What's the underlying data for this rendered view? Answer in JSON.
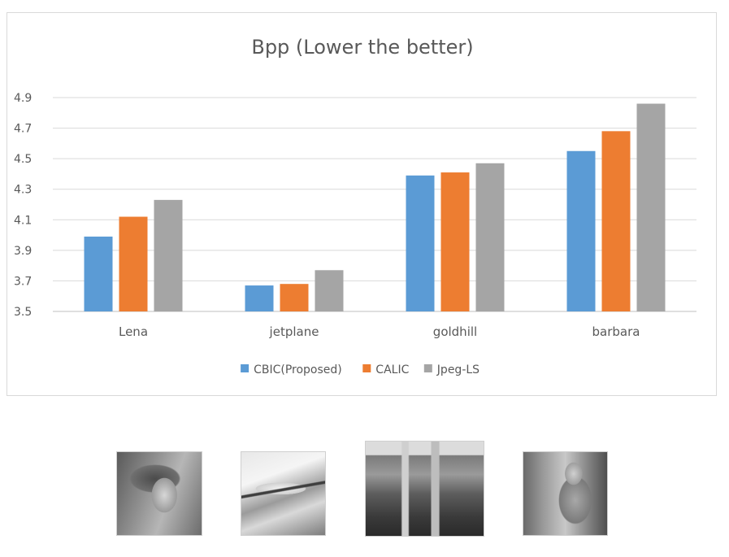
{
  "chart_data": {
    "type": "bar",
    "title": "Bpp (Lower the better)",
    "xlabel": "",
    "ylabel": "",
    "categories": [
      "Lena",
      "jetplane",
      "goldhill",
      "barbara"
    ],
    "series": [
      {
        "name": "CBIC(Proposed)",
        "color": "#5b9bd5",
        "values": [
          3.99,
          3.67,
          4.39,
          4.55
        ]
      },
      {
        "name": "CALIC",
        "color": "#ed7d31",
        "values": [
          4.12,
          3.68,
          4.41,
          4.68
        ]
      },
      {
        "name": "Jpeg-LS",
        "color": "#a5a5a5",
        "values": [
          4.23,
          3.77,
          4.47,
          4.86
        ]
      }
    ],
    "ylim": [
      3.5,
      4.9
    ],
    "yticks": [
      "3.5",
      "3.7",
      "3.9",
      "4.1",
      "4.3",
      "4.5",
      "4.7",
      "4.9"
    ],
    "grid": true,
    "legend_position": "bottom"
  }
}
